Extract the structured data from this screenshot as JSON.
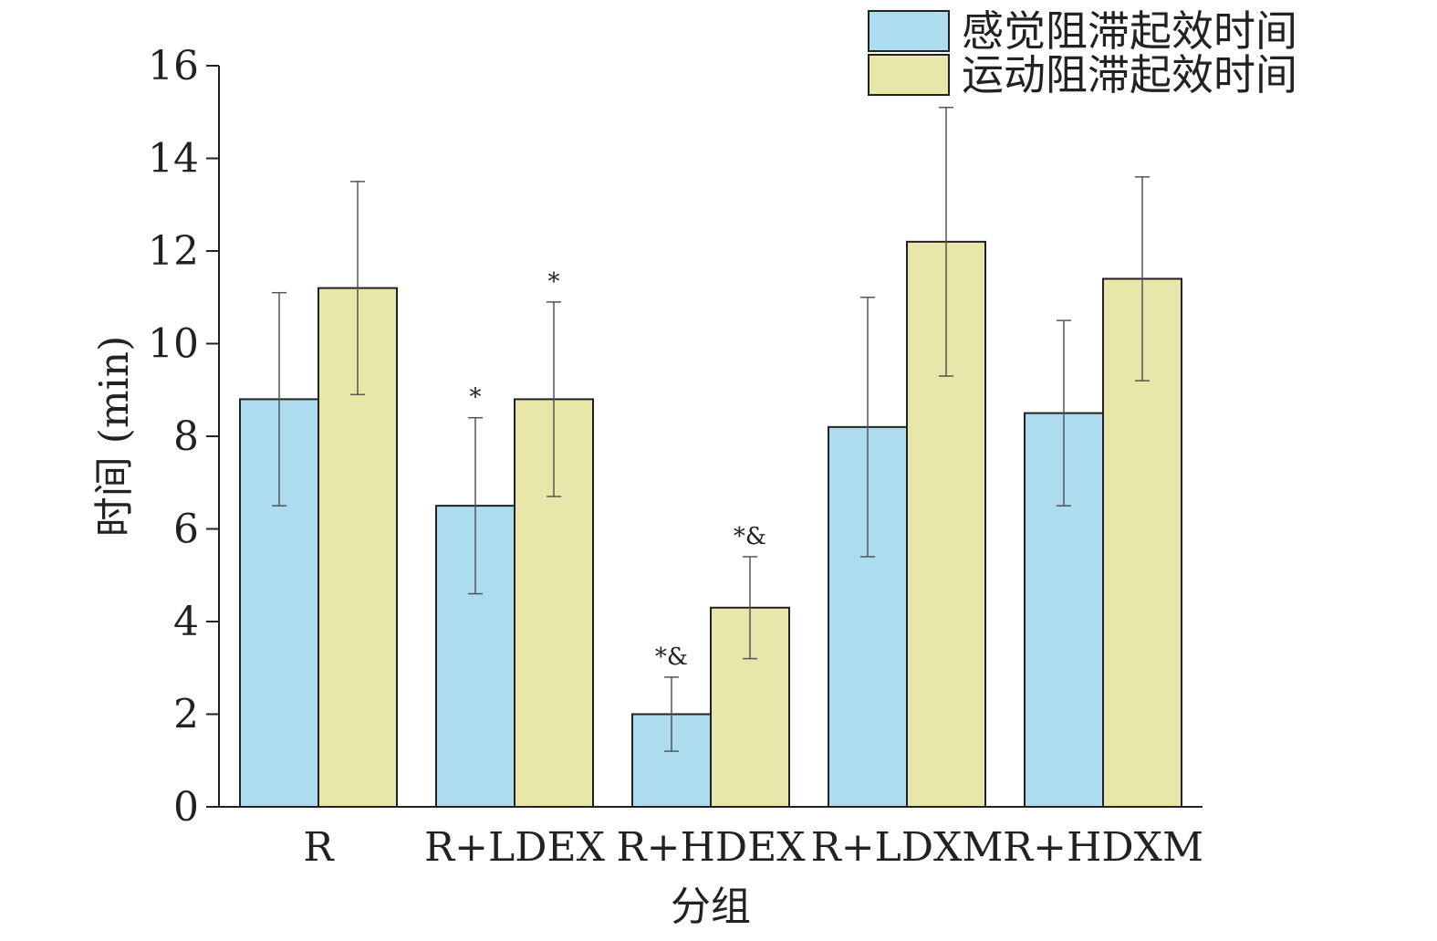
{
  "chart_data": {
    "type": "bar",
    "title": "",
    "xlabel": "分组",
    "ylabel": "时间 (min)",
    "ylim": [
      0,
      16
    ],
    "yticks": [
      0,
      2,
      4,
      6,
      8,
      10,
      12,
      14,
      16
    ],
    "grid": false,
    "legend_position": "top-right",
    "categories": [
      "R",
      "R+LDEX",
      "R+HDEX",
      "R+LDXM",
      "R+HDXM"
    ],
    "series": [
      {
        "name": "感觉阻滞起效时间",
        "color": "#aedcef",
        "values": [
          8.8,
          6.5,
          2.0,
          8.2,
          8.5
        ],
        "error": [
          2.3,
          1.9,
          0.8,
          2.8,
          2.0
        ],
        "annotations": [
          "",
          "*",
          "*&",
          "",
          ""
        ]
      },
      {
        "name": "运动阻滞起效时间",
        "color": "#e8e6a8",
        "values": [
          11.2,
          8.8,
          4.3,
          12.2,
          11.4
        ],
        "error": [
          2.3,
          2.1,
          1.1,
          2.9,
          2.2
        ],
        "annotations": [
          "",
          "*",
          "*&",
          "",
          ""
        ]
      }
    ]
  }
}
